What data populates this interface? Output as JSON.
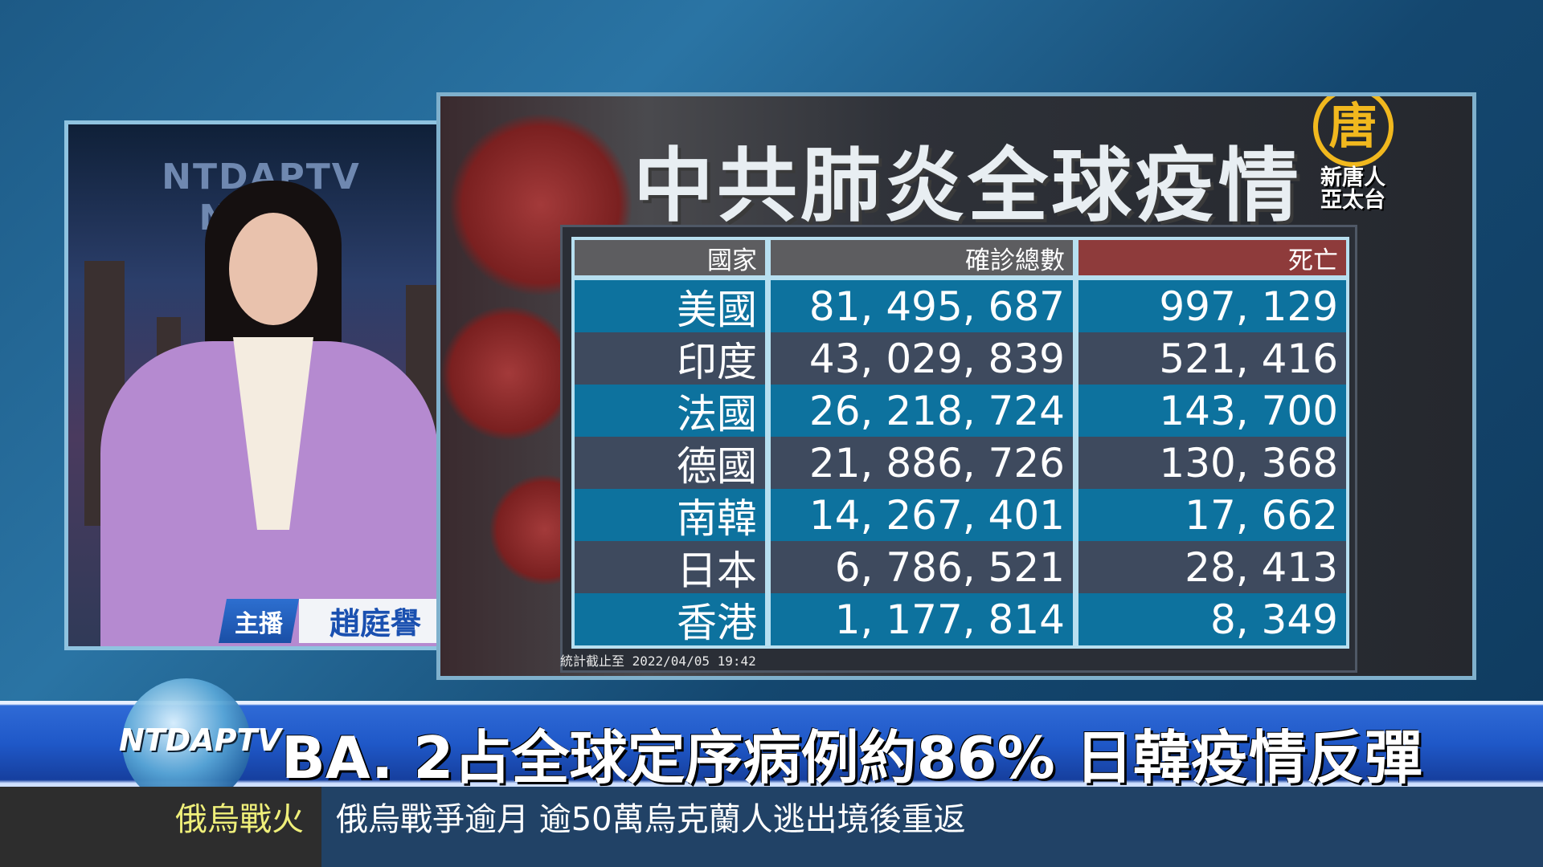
{
  "anchor": {
    "studio_sign": "NTDAPTV NEWS",
    "role": "主播",
    "name": "趙庭譽"
  },
  "panel": {
    "title": "中共肺炎全球疫情",
    "logo": {
      "glyph": "唐",
      "text_line1": "新唐人",
      "text_line2": "亞太台",
      "color": "#f1b81e"
    },
    "table": {
      "headers": [
        "國家",
        "確診總數",
        "死亡"
      ],
      "rows": [
        [
          "美國",
          "81, 495, 687",
          "997, 129"
        ],
        [
          "印度",
          "43, 029, 839",
          "521, 416"
        ],
        [
          "法國",
          "26, 218, 724",
          "143, 700"
        ],
        [
          "德國",
          "21, 886, 726",
          "130, 368"
        ],
        [
          "南韓",
          "14, 267, 401",
          "17, 662"
        ],
        [
          "日本",
          "6, 786, 521",
          "28, 413"
        ],
        [
          "香港",
          "1, 177, 814",
          "8, 349"
        ]
      ]
    },
    "footnote": "統計截止至 2022/04/05 19:42"
  },
  "ticker": {
    "logo_text": "NTDAPTV",
    "headline": "BA. 2占全球定序病例約86%  日韓疫情反彈"
  },
  "bottom": {
    "category": "俄烏戰火",
    "subtitle": "俄烏戰爭逾月 逾50萬烏克蘭人逃出境後重返"
  }
}
